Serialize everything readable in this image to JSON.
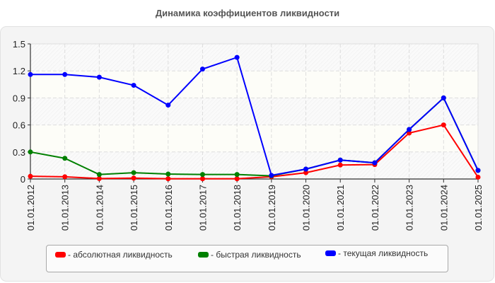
{
  "title": "Динамика коэффициентов ликвидности",
  "colors": {
    "absolute": "#ff0000",
    "quick": "#008000",
    "current": "#0000ff",
    "grid": "#dddddd",
    "panel": "#f4f4f4"
  },
  "legend": {
    "items": [
      {
        "label": "- абсолютная ликвидность",
        "color": "#ff0000"
      },
      {
        "label": "- быстрая ликвидность",
        "color": "#008000"
      },
      {
        "label": "- текущая ликвидность",
        "color": "#0000ff"
      }
    ]
  },
  "chart_data": {
    "type": "line",
    "title": "Динамика коэффициентов ликвидности",
    "xlabel": "",
    "ylabel": "",
    "ylim": [
      0,
      1.5
    ],
    "yticks": [
      "0",
      "0.3",
      "0.6",
      "0.9",
      "1.2",
      "1.5"
    ],
    "grid": true,
    "legend_position": "bottom",
    "categories": [
      "01.01.2012",
      "01.01.2013",
      "01.01.2014",
      "01.01.2015",
      "01.01.2016",
      "01.01.2017",
      "01.01.2018",
      "01.01.2019",
      "01.01.2020",
      "01.01.2021",
      "01.01.2022",
      "01.01.2023",
      "01.01.2024",
      "01.01.2025"
    ],
    "series": [
      {
        "name": "абсолютная ликвидность",
        "color": "#ff0000",
        "values": [
          0.03,
          0.025,
          0.005,
          0.01,
          0.003,
          0.003,
          0.003,
          0.025,
          0.07,
          0.155,
          0.16,
          0.51,
          0.6,
          0.02
        ]
      },
      {
        "name": "быстрая ликвидность",
        "color": "#008000",
        "values": [
          0.3,
          0.23,
          0.05,
          0.07,
          0.055,
          0.05,
          0.05,
          0.035,
          0.11,
          0.21,
          0.18,
          0.55,
          0.9,
          0.095
        ]
      },
      {
        "name": "текущая ликвидность",
        "color": "#0000ff",
        "values": [
          1.16,
          1.16,
          1.13,
          1.04,
          0.82,
          1.22,
          1.35,
          0.04,
          0.11,
          0.21,
          0.18,
          0.55,
          0.9,
          0.095
        ]
      }
    ]
  }
}
